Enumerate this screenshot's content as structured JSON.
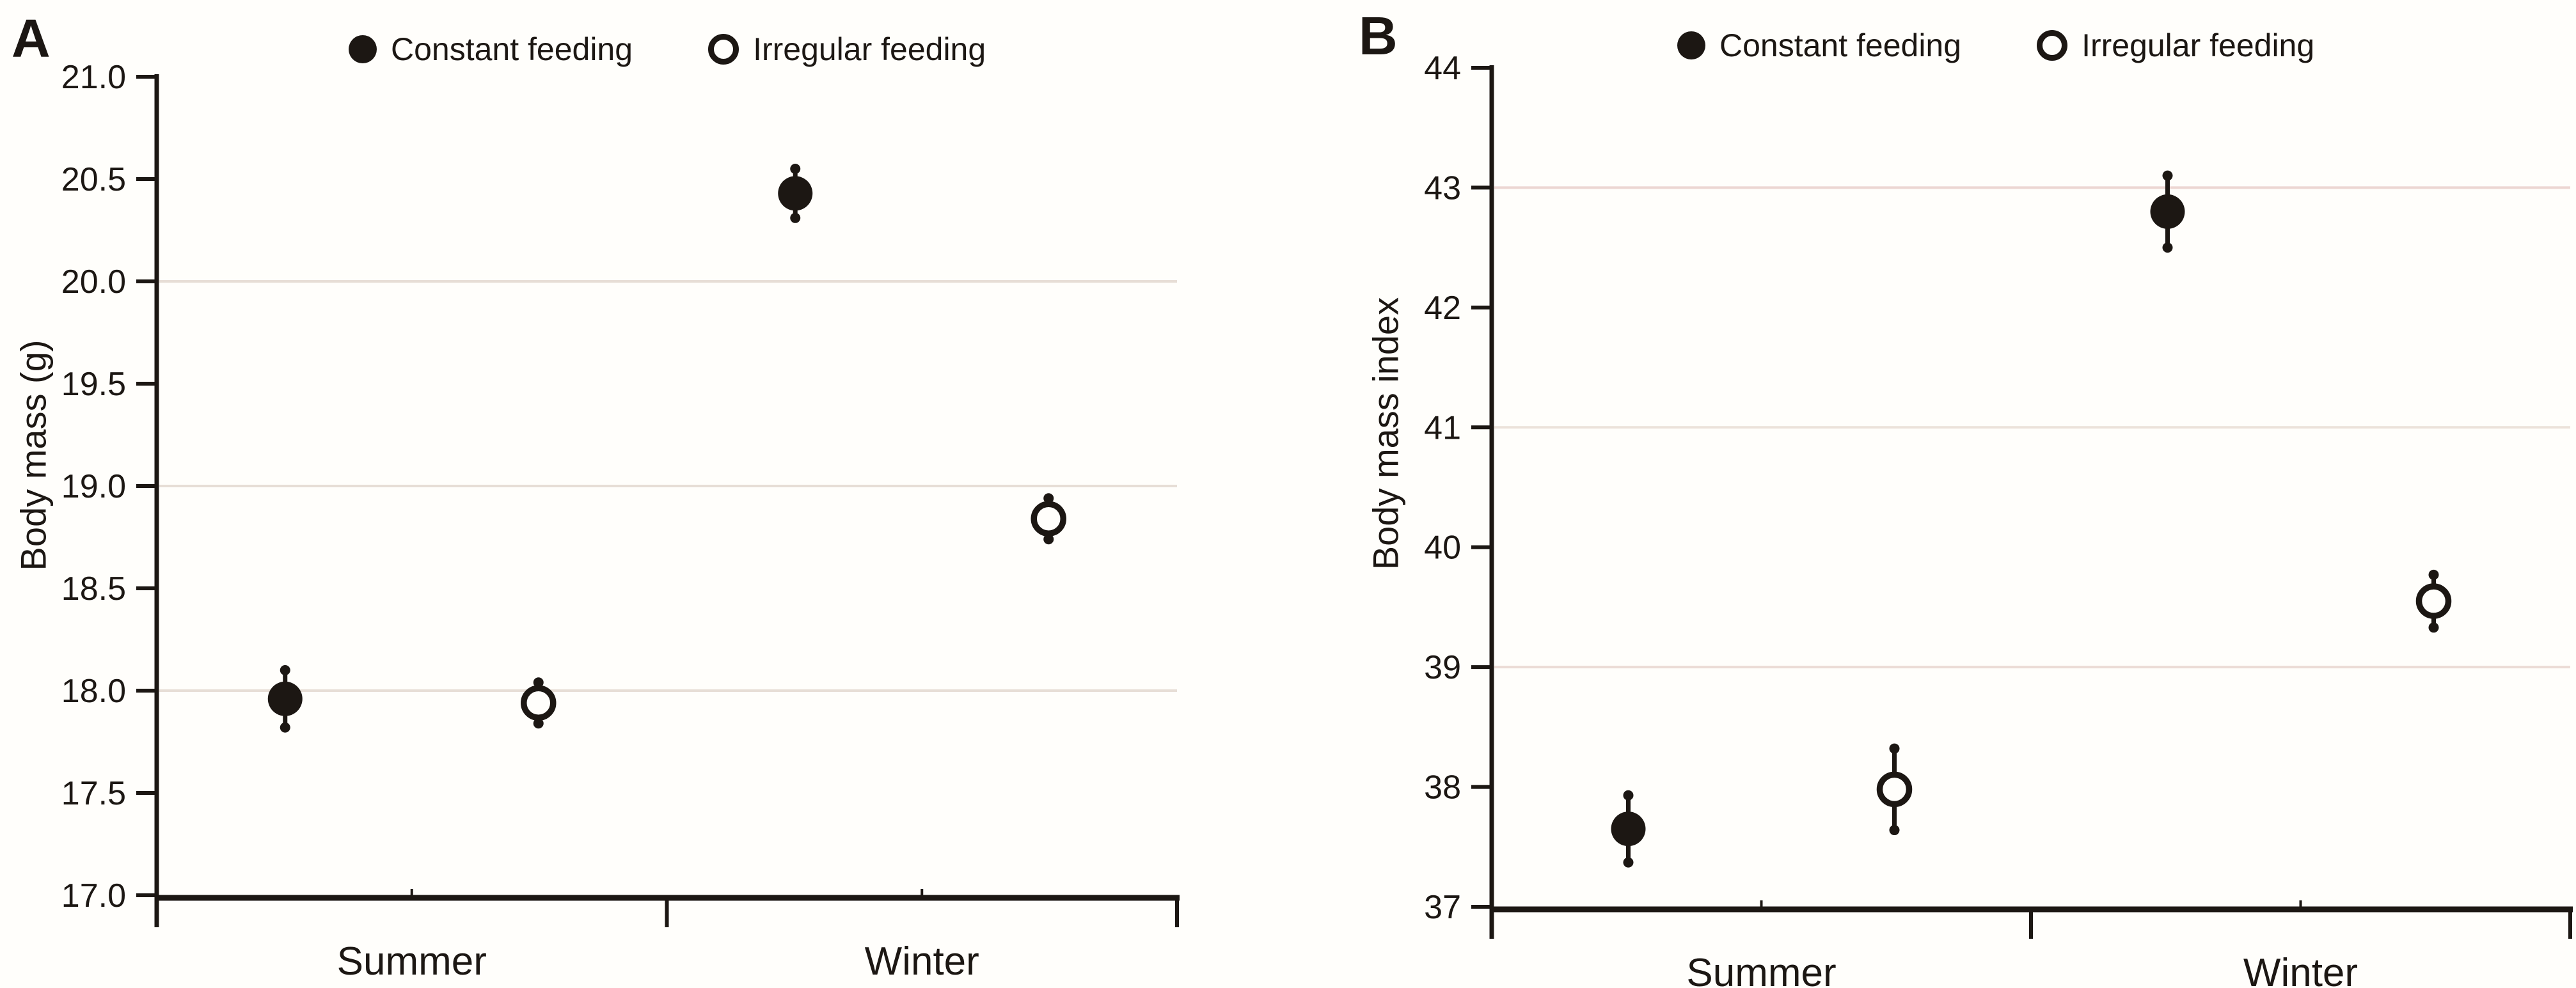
{
  "figure": {
    "background": "#fffefb",
    "ink": "#1c1713"
  },
  "chart_data": [
    {
      "type": "scatter",
      "panel_label": "A",
      "ylabel": "Body mass (g)",
      "ylim": [
        17.0,
        21.0
      ],
      "yticks": [
        "21.0",
        "20.5",
        "20.0",
        "19.5",
        "19.0",
        "18.5",
        "18.0",
        "17.5",
        "17.0"
      ],
      "gridlines": [
        {
          "value": 20.0,
          "color": "#e7ded6"
        },
        {
          "value": 19.0,
          "color": "#e7ded6"
        },
        {
          "value": 18.0,
          "color": "#e7ded6"
        }
      ],
      "categories": [
        "Summer",
        "Winter"
      ],
      "legend_position": "top",
      "grid": "horizontal-partial",
      "series": [
        {
          "name": "Constant feeding",
          "marker": "filled-circle",
          "values": [
            17.96,
            20.43
          ],
          "errors": [
            0.14,
            0.12
          ]
        },
        {
          "name": "Irregular feeding",
          "marker": "open-circle",
          "values": [
            17.94,
            18.84
          ],
          "errors": [
            0.1,
            0.1
          ]
        }
      ]
    },
    {
      "type": "scatter",
      "panel_label": "B",
      "ylabel": "Body mass index",
      "ylim": [
        37,
        44
      ],
      "yticks": [
        "44",
        "43",
        "42",
        "41",
        "40",
        "39",
        "38",
        "37"
      ],
      "gridlines": [
        {
          "value": 43,
          "color": "#ecd6d2"
        },
        {
          "value": 41,
          "color": "#ece2da"
        },
        {
          "value": 39,
          "color": "#ecdcd6"
        }
      ],
      "categories": [
        "Summer",
        "Winter"
      ],
      "legend_position": "top",
      "grid": "horizontal-partial",
      "series": [
        {
          "name": "Constant feeding",
          "marker": "filled-circle",
          "values": [
            37.65,
            42.8
          ],
          "errors": [
            0.28,
            0.3
          ]
        },
        {
          "name": "Irregular feeding",
          "marker": "open-circle",
          "values": [
            37.98,
            39.55
          ],
          "errors": [
            0.34,
            0.22
          ]
        }
      ]
    }
  ]
}
